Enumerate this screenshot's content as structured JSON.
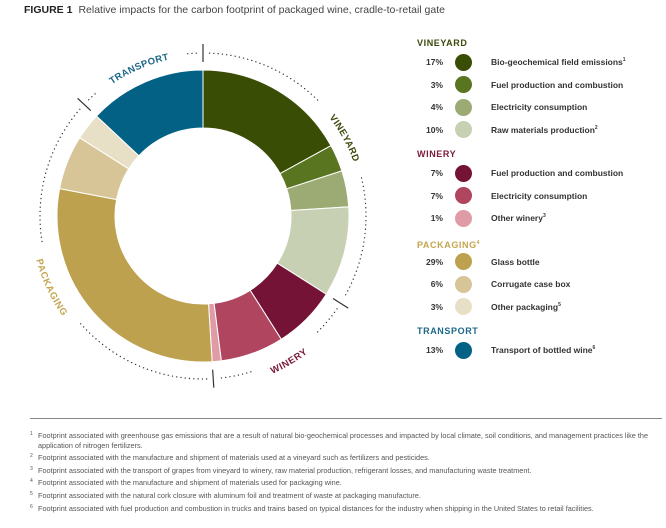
{
  "figure": {
    "number": "FIGURE 1",
    "title": "Relative impacts for the carbon footprint of packaged wine, cradle-to-retail gate"
  },
  "chart_data": {
    "type": "pie",
    "subtype": "donut",
    "title": "Relative impacts for the carbon footprint of packaged wine, cradle-to-retail gate",
    "unit": "%",
    "start": "top, clockwise",
    "categories": [
      {
        "name": "VINEYARD",
        "sup": "",
        "color": "#3b4a0b",
        "items": [
          {
            "label": "Bio-geochemical field emissions",
            "sup": "1",
            "value": 17,
            "color": "#3a4d04"
          },
          {
            "label": "Fuel production and combustion",
            "sup": "",
            "value": 3,
            "color": "#5a7520"
          },
          {
            "label": "Electricity consumption",
            "sup": "",
            "value": 4,
            "color": "#9bab73"
          },
          {
            "label": "Raw materials production",
            "sup": "2",
            "value": 10,
            "color": "#c8d0b4"
          }
        ]
      },
      {
        "name": "WINERY",
        "sup": "",
        "color": "#7a1a3c",
        "items": [
          {
            "label": "Fuel production and combustion",
            "sup": "",
            "value": 7,
            "color": "#741336"
          },
          {
            "label": "Electricity consumption",
            "sup": "",
            "value": 7,
            "color": "#b04560"
          },
          {
            "label": "Other winery",
            "sup": "3",
            "value": 1,
            "color": "#df9ca6"
          }
        ]
      },
      {
        "name": "PACKAGING",
        "sup": "4",
        "color": "#c4a54f",
        "items": [
          {
            "label": "Glass bottle",
            "sup": "",
            "value": 29,
            "color": "#bda14f"
          },
          {
            "label": "Corrugate case box",
            "sup": "",
            "value": 6,
            "color": "#d7c598"
          },
          {
            "label": "Other packaging",
            "sup": "5",
            "value": 3,
            "color": "#e8e0c6"
          }
        ]
      },
      {
        "name": "TRANSPORT",
        "sup": "",
        "color": "#1d6788",
        "items": [
          {
            "label": "Transport of bottled wine",
            "sup": "6",
            "value": 13,
            "color": "#036186"
          }
        ]
      }
    ]
  },
  "footnotes": [
    {
      "n": "1",
      "text": "Footprint associated with greenhouse gas emissions that are a result of natural bio-geochemical processes and impacted by local climate, soil conditions, and management practices like the application of nitrogen fertilizers."
    },
    {
      "n": "2",
      "text": "Footprint associated with the manufacture and shipment of materials used at a vineyard such as fertilizers and pesticides."
    },
    {
      "n": "3",
      "text": "Footprint associated with the transport of grapes from vineyard to winery, raw material production, refrigerant losses, and manufacturing waste treatment."
    },
    {
      "n": "4",
      "text": "Footprint associated with the manufacture and shipment of materials used for packaging wine."
    },
    {
      "n": "5",
      "text": "Footprint associated with the natural cork closure with aluminum foil and treatment of waste at packaging manufacture."
    },
    {
      "n": "6",
      "text": "Footprint associated with fuel production and combustion in trucks and trains based on typical distances for the industry when shipping in the United States to retail facilities."
    }
  ]
}
